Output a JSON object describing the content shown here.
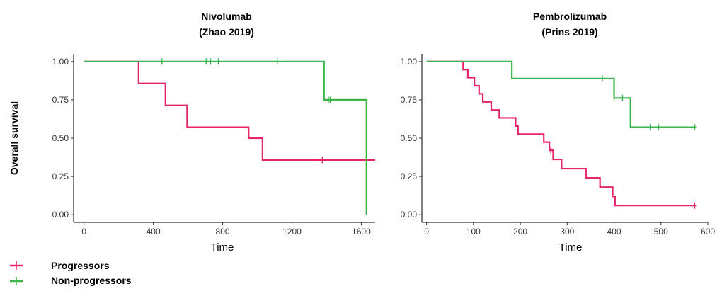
{
  "colors": {
    "progressors": "#e6236b",
    "non_progressors": "#3bb449"
  },
  "ylabel": "Overall survival",
  "legend": {
    "items": [
      {
        "label": "Progressors",
        "color": "#e6236b"
      },
      {
        "label": "Non-progressors",
        "color": "#3bb449"
      }
    ]
  },
  "chart_data": [
    {
      "type": "line",
      "step": true,
      "title": [
        "Nivolumab",
        "(Zhao 2019)"
      ],
      "xlabel": "Time",
      "ylabel": "Overall survival",
      "xlim": [
        -60,
        1680
      ],
      "ylim": [
        -0.05,
        1.05
      ],
      "xticks": [
        0,
        400,
        800,
        1200,
        1600
      ],
      "yticks": [
        0.0,
        0.25,
        0.5,
        0.75,
        1.0
      ],
      "ytick_labels": [
        "0.00",
        "0.25",
        "0.50",
        "0.75",
        "1.00"
      ],
      "grid": false,
      "series": [
        {
          "name": "Progressors",
          "color": "#e6236b",
          "steps": [
            [
              0,
              1.0
            ],
            [
              315,
              0.857
            ],
            [
              470,
              0.714
            ],
            [
              595,
              0.571
            ],
            [
              950,
              0.5
            ],
            [
              1030,
              0.357
            ],
            [
              1680,
              0.357
            ]
          ],
          "censor": [
            1375
          ]
        },
        {
          "name": "Non-progressors",
          "color": "#3bb449",
          "steps": [
            [
              0,
              1.0
            ],
            [
              1385,
              0.75
            ],
            [
              1630,
              0.0
            ]
          ],
          "censor": [
            450,
            705,
            730,
            775,
            1115,
            1410,
            1420
          ]
        }
      ]
    },
    {
      "type": "line",
      "step": true,
      "title": [
        "Pembrolizumab",
        "(Prins 2019)"
      ],
      "xlabel": "Time",
      "ylabel": "",
      "xlim": [
        -10,
        600
      ],
      "ylim": [
        -0.05,
        1.05
      ],
      "xticks": [
        0,
        100,
        200,
        300,
        400,
        500,
        600
      ],
      "yticks": [
        0.0,
        0.25,
        0.5,
        0.75,
        1.0
      ],
      "ytick_labels": [
        "0.00",
        "0.25",
        "0.50",
        "0.75",
        "1.00"
      ],
      "grid": false,
      "series": [
        {
          "name": "Progressors",
          "color": "#e6236b",
          "steps": [
            [
              0,
              1.0
            ],
            [
              78,
              0.947
            ],
            [
              88,
              0.895
            ],
            [
              102,
              0.842
            ],
            [
              112,
              0.789
            ],
            [
              120,
              0.737
            ],
            [
              138,
              0.684
            ],
            [
              155,
              0.632
            ],
            [
              190,
              0.579
            ],
            [
              195,
              0.526
            ],
            [
              250,
              0.474
            ],
            [
              262,
              0.421
            ],
            [
              270,
              0.361
            ],
            [
              288,
              0.301
            ],
            [
              340,
              0.241
            ],
            [
              370,
              0.18
            ],
            [
              397,
              0.12
            ],
            [
              402,
              0.06
            ],
            [
              575,
              0.06
            ]
          ],
          "censor": [
            265,
            572
          ]
        },
        {
          "name": "Non-progressors",
          "color": "#3bb449",
          "steps": [
            [
              0,
              1.0
            ],
            [
              182,
              0.889
            ],
            [
              400,
              0.762
            ],
            [
              435,
              0.571
            ],
            [
              575,
              0.571
            ]
          ],
          "censor": [
            375,
            400,
            418,
            477,
            495,
            572
          ]
        }
      ]
    }
  ]
}
